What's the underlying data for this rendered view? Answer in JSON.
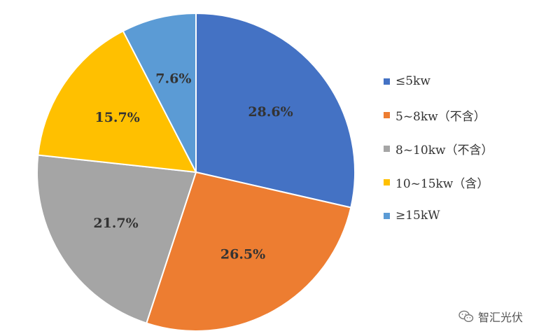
{
  "chart_data": {
    "type": "pie",
    "categories": [
      "≤5kw",
      "5~8kw（不含）",
      "8~10kw（不含）",
      "10~15kw（含）",
      "≥15kW"
    ],
    "values": [
      28.6,
      26.5,
      21.7,
      15.7,
      7.6
    ],
    "data_labels": [
      "28.6%",
      "26.5%",
      "21.7%",
      "15.7%",
      "7.6%"
    ],
    "colors": [
      "#4472C4",
      "#ED7D31",
      "#A5A5A5",
      "#FFC000",
      "#5B9BD5"
    ],
    "start_angle": "12 o'clock",
    "direction": "clockwise",
    "legend_position": "right",
    "title": ""
  },
  "watermark": {
    "icon": "wechat-icon",
    "text": "智汇光伏"
  }
}
